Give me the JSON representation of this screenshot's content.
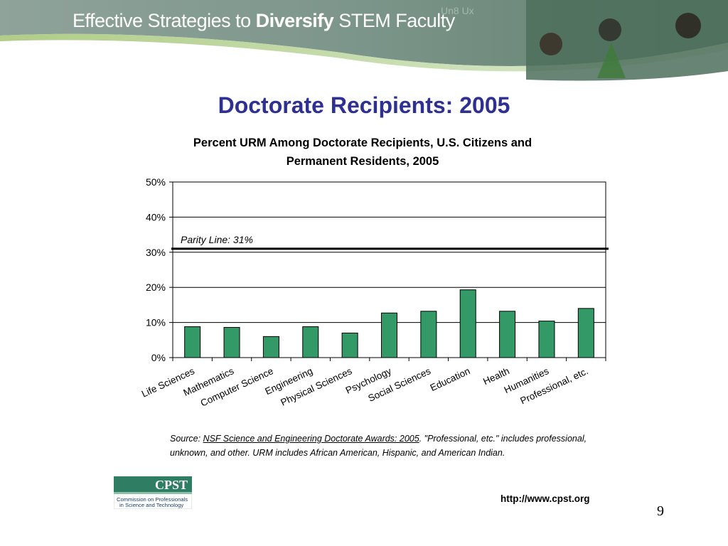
{
  "banner": {
    "title_part1": "Effective Strategies to ",
    "title_part2": "Diversify",
    "title_part3": " STEM Faculty"
  },
  "slide_title": "Doctorate Recipients: 2005",
  "chart_data": {
    "type": "bar",
    "title": "Percent URM Among Doctorate Recipients, U.S. Citizens and Permanent Residents, 2005",
    "title_line1": "Percent URM Among Doctorate Recipients, U.S. Citizens and",
    "title_line2": "Permanent Residents, 2005",
    "categories": [
      "Life Sciences",
      "Mathematics",
      "Computer Science",
      "Engineering",
      "Physical Sciences",
      "Psychology",
      "Social Sciences",
      "Education",
      "Health",
      "Humanities",
      "Professional, etc."
    ],
    "values": [
      8.8,
      8.6,
      6.0,
      8.8,
      7.0,
      12.7,
      13.2,
      19.3,
      13.2,
      10.4,
      14.0
    ],
    "y_ticks": [
      "0%",
      "10%",
      "20%",
      "30%",
      "40%",
      "50%"
    ],
    "ylim": [
      0,
      50
    ],
    "grid": true,
    "bar_color": "#339966",
    "reference_line": {
      "value": 31,
      "label": "Parity Line: 31%"
    }
  },
  "source": {
    "prefix": "Source: ",
    "link_text": "NSF Science and Engineering Doctorate Awards: 2005",
    "rest": ". \"Professional, etc.\" includes professional, unknown, and other. URM includes African American, Hispanic, and American Indian."
  },
  "logo": {
    "name": "CPST",
    "line1": "Commission on Professionals",
    "line2": "in Science and Technology"
  },
  "url": "http://www.cpst.org",
  "page_number": "9",
  "colors": {
    "title": "#2e3192",
    "banner_bg": "#6f8f7a",
    "accent_green": "#2f7d62"
  }
}
